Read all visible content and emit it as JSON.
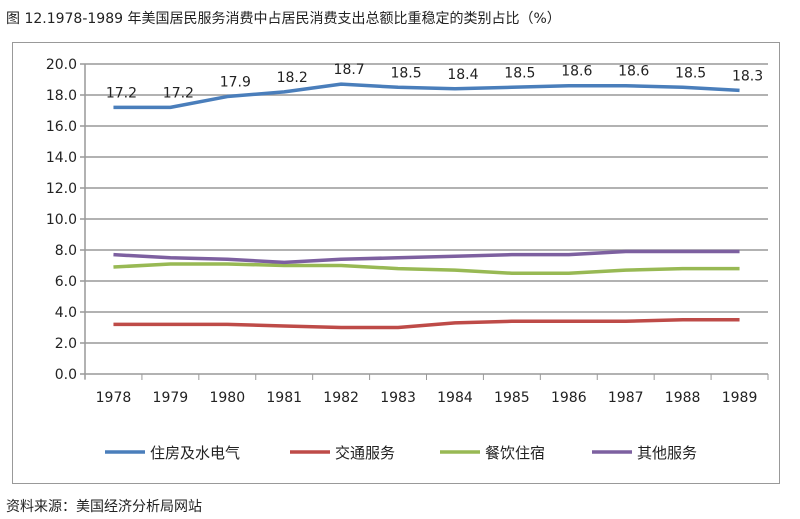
{
  "title": "图 12.1978-1989 年美国居民服务消费中占居民消费支出总额比重稳定的类别占比（%）",
  "source": "资料来源：美国经济分析局网站",
  "chart_data": {
    "type": "line",
    "categories": [
      "1978",
      "1979",
      "1980",
      "1981",
      "1982",
      "1983",
      "1984",
      "1985",
      "1986",
      "1987",
      "1988",
      "1989"
    ],
    "ylim": [
      0,
      20
    ],
    "yticks": [
      "0.0",
      "2.0",
      "4.0",
      "6.0",
      "8.0",
      "10.0",
      "12.0",
      "14.0",
      "16.0",
      "18.0",
      "20.0"
    ],
    "grid": true,
    "legend_position": "bottom",
    "series": [
      {
        "name": "住房及水电气",
        "color": "#4a7ebb",
        "values": [
          17.2,
          17.2,
          17.9,
          18.2,
          18.7,
          18.5,
          18.4,
          18.5,
          18.6,
          18.6,
          18.5,
          18.3
        ],
        "labels": [
          "17.2",
          "17.2",
          "17.9",
          "18.2",
          "18.7",
          "18.5",
          "18.4",
          "18.5",
          "18.6",
          "18.6",
          "18.5",
          "18.3"
        ]
      },
      {
        "name": "交通服务",
        "color": "#be4b48",
        "values": [
          3.2,
          3.2,
          3.2,
          3.1,
          3.0,
          3.0,
          3.3,
          3.4,
          3.4,
          3.4,
          3.5,
          3.5
        ]
      },
      {
        "name": "餐饮住宿",
        "color": "#98b954",
        "values": [
          6.9,
          7.1,
          7.1,
          7.0,
          7.0,
          6.8,
          6.7,
          6.5,
          6.5,
          6.7,
          6.8,
          6.8
        ]
      },
      {
        "name": "其他服务",
        "color": "#7d60a0",
        "values": [
          7.7,
          7.5,
          7.4,
          7.2,
          7.4,
          7.5,
          7.6,
          7.7,
          7.7,
          7.9,
          7.9,
          7.9
        ]
      }
    ]
  }
}
